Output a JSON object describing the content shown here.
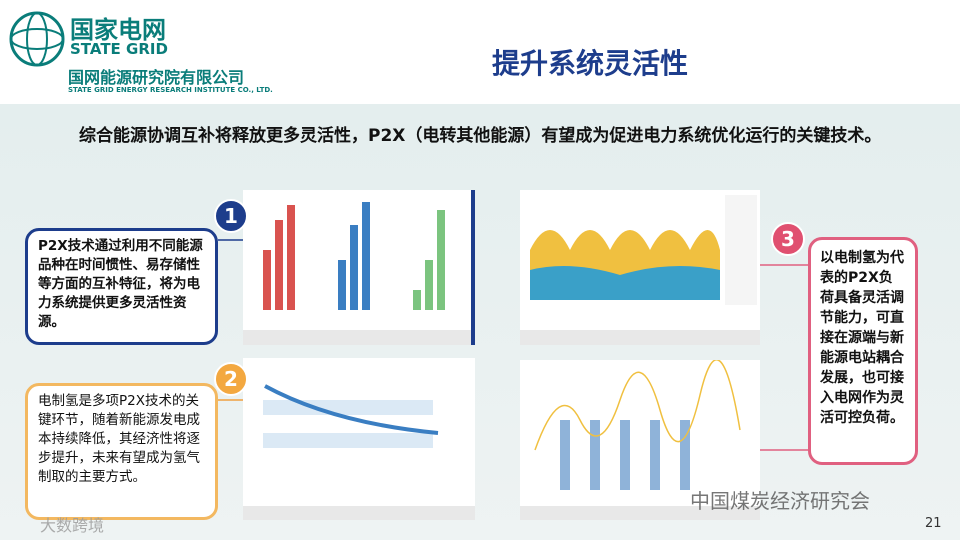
{
  "logo": {
    "name_cn": "国家电网",
    "name_en": "STATE GRID",
    "institute_cn": "国网能源研究院有限公司",
    "institute_en": "STATE GRID ENERGY RESEARCH INSTITUTE CO., LTD."
  },
  "title": "提升系统灵活性",
  "intro": "综合能源协调互补将释放更多灵活性，P2X（电转其他能源）有望成为促进电力系统优化运行的关键技术。",
  "callouts": [
    {
      "number": "1",
      "text": "P2X技术通过利用不同能源品种在时间惯性、易存储性等方面的互补特征，将为电力系统提供更多灵活性资源。"
    },
    {
      "number": "2",
      "text": "电制氢是多项P2X技术的关键环节，随着新能源发电成本持续降低，其经济性将逐步提升，未来有望成为氢气制取的主要方式。"
    },
    {
      "number": "3",
      "text": "以电制氢为代表的P2X负荷具备灵活调节能力，可直接在源端与新能源电站耦合发展，也可接入电网作为灵活可控负荷。"
    }
  ],
  "watermark": "中国煤炭经济研究会",
  "corner_logo": "大数跨境",
  "page_number": "21"
}
